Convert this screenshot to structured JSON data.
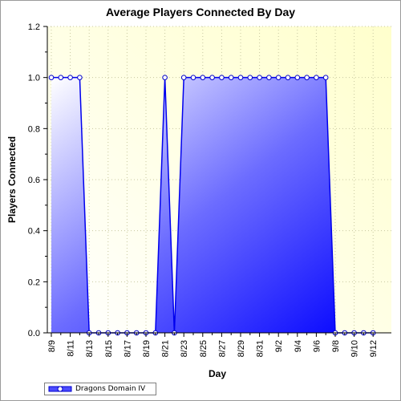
{
  "chart_data": {
    "type": "area",
    "title": "Average Players Connected By Day",
    "xlabel": "Day",
    "ylabel": "Players Connected",
    "ylim": [
      0.0,
      1.2
    ],
    "yticks": [
      "0.0",
      "0.2",
      "0.4",
      "0.6",
      "0.8",
      "1.0",
      "1.2"
    ],
    "xtick_labels": [
      "8/9",
      "8/11",
      "8/13",
      "8/15",
      "8/17",
      "8/19",
      "8/21",
      "8/23",
      "8/25",
      "8/27",
      "8/29",
      "8/31",
      "9/2",
      "9/4",
      "9/6",
      "9/8",
      "9/10",
      "9/12"
    ],
    "x": [
      "8/9",
      "8/10",
      "8/11",
      "8/12",
      "8/13",
      "8/14",
      "8/15",
      "8/16",
      "8/17",
      "8/18",
      "8/19",
      "8/20",
      "8/21",
      "8/22",
      "8/23",
      "8/24",
      "8/25",
      "8/26",
      "8/27",
      "8/28",
      "8/29",
      "8/30",
      "8/31",
      "9/1",
      "9/2",
      "9/3",
      "9/4",
      "9/5",
      "9/6",
      "9/7",
      "9/8",
      "9/9",
      "9/10",
      "9/11",
      "9/12"
    ],
    "series": [
      {
        "name": "Dragons Domain IV",
        "values": [
          1,
          1,
          1,
          1,
          0,
          0,
          0,
          0,
          0,
          0,
          0,
          0,
          1,
          0,
          1,
          1,
          1,
          1,
          1,
          1,
          1,
          1,
          1,
          1,
          1,
          1,
          1,
          1,
          1,
          1,
          0,
          0,
          0,
          0,
          0
        ]
      }
    ],
    "grid": true,
    "legend": "bottom-left",
    "colors": {
      "line": "#0000ee",
      "fill_dark": "#0000ff",
      "fill_light": "#ffffff",
      "plot_bg_light": "#fffff7",
      "plot_bg_dark": "#ffffd0"
    }
  }
}
